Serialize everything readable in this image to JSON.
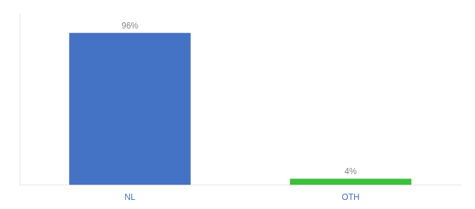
{
  "chart_data": {
    "type": "bar",
    "categories": [
      "NL",
      "OTH"
    ],
    "values": [
      96,
      4
    ],
    "value_labels": [
      "96%",
      "4%"
    ],
    "colors": [
      "#4472c4",
      "#3dbf3d"
    ],
    "ylim": [
      0,
      108
    ],
    "grid": false,
    "legend": false,
    "data_labels": true,
    "tick_labels": "x"
  }
}
